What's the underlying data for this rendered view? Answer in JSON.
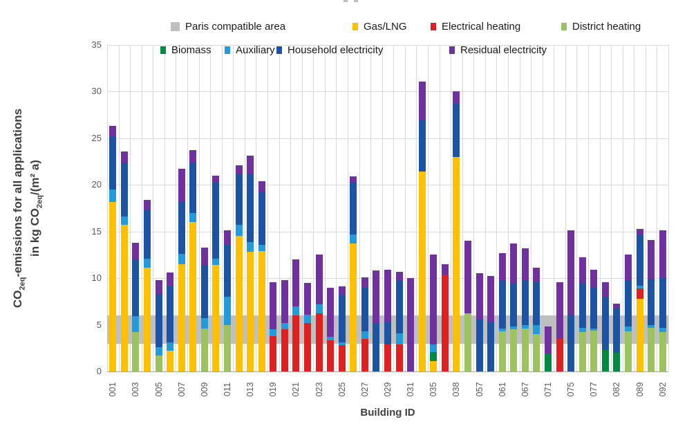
{
  "chart_data": {
    "type": "bar",
    "subtype": "stacked",
    "title": "",
    "xlabel": "Building ID",
    "ylabel": {
      "l1pre": "CO",
      "l1sub": "2eq",
      "l1post": "-emissions for all applications",
      "l2pre": "in kg CO",
      "l2sub": "2eq",
      "l2post": "/(m² a)"
    },
    "ylim": [
      0,
      35
    ],
    "yticks": [
      0,
      5,
      10,
      15,
      20,
      25,
      30,
      35
    ],
    "grid": "horizontal-and-vertical-category-separators",
    "band": {
      "name": "Paris compatible area",
      "from": 3.0,
      "to": 6.0,
      "color": "#bfbfbf"
    },
    "series_order": [
      "gas",
      "electrical",
      "district",
      "biomass",
      "auxiliary",
      "household",
      "residual"
    ],
    "series_labels": {
      "paris": "Paris compatible area",
      "gas": "Gas/LNG",
      "electrical": "Electrical heating",
      "district": "District heating",
      "biomass": "Biomass",
      "auxiliary": "Auxiliary",
      "household": "Household electricity",
      "residual": "Residual electricity"
    },
    "colors": {
      "paris": "#bfbfbf",
      "gas": "#ffc000",
      "electrical": "#e02020",
      "district": "#9dc35f",
      "biomass": "#008a3e",
      "auxiliary": "#229bdc",
      "household": "#1b54a5",
      "residual": "#7030a0"
    },
    "bars": [
      {
        "label": "001",
        "gas": 18.2,
        "auxiliary": 1.3,
        "household": 5.7,
        "residual": 1.1
      },
      {
        "label": "",
        "gas": 15.7,
        "auxiliary": 0.9,
        "household": 5.8,
        "residual": 1.2
      },
      {
        "label": "003",
        "district": 4.2,
        "auxiliary": 1.7,
        "household": 6.1,
        "residual": 1.8
      },
      {
        "label": "",
        "gas": 11.1,
        "auxiliary": 1.0,
        "household": 5.2,
        "residual": 1.1
      },
      {
        "label": "005",
        "district": 1.7,
        "auxiliary": 0.9,
        "household": 5.7,
        "residual": 1.5
      },
      {
        "label": "",
        "gas": 2.2,
        "auxiliary": 0.9,
        "household": 6.0,
        "residual": 1.5
      },
      {
        "label": "007",
        "gas": 11.5,
        "auxiliary": 1.1,
        "household": 5.6,
        "residual": 3.5
      },
      {
        "label": "",
        "gas": 16.0,
        "auxiliary": 1.0,
        "household": 5.3,
        "residual": 1.4
      },
      {
        "label": "009",
        "district": 4.6,
        "auxiliary": 1.1,
        "household": 5.7,
        "residual": 1.9
      },
      {
        "label": "",
        "gas": 11.4,
        "auxiliary": 0.7,
        "household": 8.2,
        "residual": 0.7
      },
      {
        "label": "011",
        "district": 5.0,
        "auxiliary": 3.0,
        "household": 5.6,
        "residual": 1.5
      },
      {
        "label": "",
        "gas": 14.5,
        "auxiliary": 1.2,
        "household": 5.5,
        "residual": 0.9
      },
      {
        "label": "013",
        "gas": 12.8,
        "auxiliary": 1.1,
        "household": 7.3,
        "residual": 1.9
      },
      {
        "label": "",
        "gas": 12.9,
        "auxiliary": 0.7,
        "household": 5.7,
        "residual": 1.1
      },
      {
        "label": "019",
        "electrical": 3.8,
        "auxiliary": 0.7,
        "residual": 5.1
      },
      {
        "label": "",
        "electrical": 4.5,
        "auxiliary": 0.7,
        "residual": 4.6
      },
      {
        "label": "021",
        "electrical": 6.0,
        "auxiliary": 1.0,
        "residual": 5.0
      },
      {
        "label": "",
        "electrical": 5.2,
        "auxiliary": 0.9,
        "residual": 3.4
      },
      {
        "label": "023",
        "electrical": 6.2,
        "auxiliary": 1.0,
        "residual": 5.3
      },
      {
        "label": "",
        "electrical": 3.3,
        "auxiliary": 0.4,
        "residual": 5.3
      },
      {
        "label": "025",
        "electrical": 2.8,
        "auxiliary": 0.3,
        "household": 5.1,
        "residual": 0.9
      },
      {
        "label": "",
        "gas": 13.7,
        "auxiliary": 1.0,
        "household": 5.6,
        "residual": 0.6
      },
      {
        "label": "027",
        "electrical": 3.5,
        "auxiliary": 0.8,
        "household": 4.7,
        "residual": 1.1
      },
      {
        "label": "",
        "household": 5.1,
        "residual": 5.7
      },
      {
        "label": "029",
        "electrical": 2.9,
        "household": 2.4,
        "residual": 5.6
      },
      {
        "label": "",
        "electrical": 2.9,
        "auxiliary": 1.2,
        "household": 5.7,
        "residual": 0.9
      },
      {
        "label": "031",
        "residual": 10.0
      },
      {
        "label": "",
        "gas": 21.4,
        "household": 5.5,
        "residual": 4.2
      },
      {
        "label": "035",
        "gas": 1.1,
        "biomass": 1.0,
        "auxiliary": 0.8,
        "residual": 9.6
      },
      {
        "label": "",
        "electrical": 10.4,
        "residual": 1.1
      },
      {
        "label": "038",
        "gas": 23.0,
        "household": 5.7,
        "residual": 1.3
      },
      {
        "label": "",
        "district": 6.2,
        "residual": 7.8
      },
      {
        "label": "057",
        "household": 5.6,
        "residual": 4.9
      },
      {
        "label": "",
        "household": 5.3,
        "residual": 4.9
      },
      {
        "label": "061",
        "district": 4.3,
        "auxiliary": 0.3,
        "household": 5.2,
        "residual": 2.9
      },
      {
        "label": "",
        "district": 4.5,
        "auxiliary": 0.3,
        "household": 4.7,
        "residual": 4.2
      },
      {
        "label": "067",
        "district": 4.6,
        "auxiliary": 0.4,
        "household": 4.8,
        "residual": 3.4
      },
      {
        "label": "",
        "district": 4.0,
        "auxiliary": 1.0,
        "household": 4.6,
        "residual": 1.5
      },
      {
        "label": "071",
        "biomass": 1.9,
        "residual": 2.9
      },
      {
        "label": "",
        "electrical": 3.5,
        "residual": 6.1
      },
      {
        "label": "075",
        "household": 6.1,
        "residual": 9.0
      },
      {
        "label": "",
        "district": 4.2,
        "auxiliary": 0.5,
        "household": 4.7,
        "residual": 2.8
      },
      {
        "label": "077",
        "district": 4.4,
        "auxiliary": 0.2,
        "household": 4.4,
        "residual": 1.9
      },
      {
        "label": "",
        "biomass": 2.3,
        "household": 5.7,
        "residual": 1.6
      },
      {
        "label": "082",
        "biomass": 2.0,
        "household": 4.8,
        "residual": 0.5
      },
      {
        "label": "",
        "district": 4.3,
        "auxiliary": 0.5,
        "household": 5.0,
        "residual": 2.7
      },
      {
        "label": "089",
        "gas": 7.8,
        "electrical": 1.1,
        "auxiliary": 0.3,
        "household": 5.4,
        "residual": 0.7
      },
      {
        "label": "",
        "district": 4.7,
        "auxiliary": 0.3,
        "household": 4.9,
        "residual": 4.2
      },
      {
        "label": "092",
        "district": 4.2,
        "auxiliary": 0.5,
        "household": 5.3,
        "residual": 5.1
      }
    ]
  },
  "legend": {
    "rows": [
      [
        {
          "key": "paris",
          "swatch": "area"
        },
        {
          "key": "gas",
          "swatch": "series"
        },
        {
          "key": "electrical",
          "swatch": "series"
        },
        {
          "key": "district",
          "swatch": "series"
        }
      ],
      [
        {
          "key": "biomass",
          "swatch": "series"
        },
        {
          "key": "auxiliary",
          "swatch": "series"
        },
        {
          "key": "household",
          "swatch": "series"
        },
        {
          "key": "residual",
          "swatch": "series"
        }
      ]
    ]
  },
  "artifacts": {
    "top_cropped_caption_marks": true
  }
}
